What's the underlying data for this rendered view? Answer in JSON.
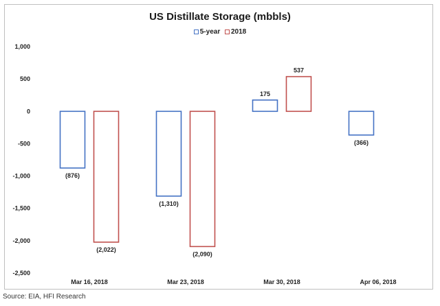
{
  "chart_data": {
    "type": "bar",
    "title": "US Distillate Storage (mbbls)",
    "categories": [
      "Mar 16, 2018",
      "Mar 23, 2018",
      "Mar 30, 2018",
      "Apr 06, 2018"
    ],
    "series": [
      {
        "name": "5-year",
        "values": [
          -876,
          -1310,
          175,
          -366
        ],
        "labels": [
          "(876)",
          "(1,310)",
          "175",
          "(366)"
        ],
        "color": "#4472c4"
      },
      {
        "name": "2018",
        "values": [
          -2022,
          -2090,
          537,
          null
        ],
        "labels": [
          "(2,022)",
          "(2,090)",
          "537",
          ""
        ],
        "color": "#c0504d"
      }
    ],
    "yticks": [
      1000,
      500,
      0,
      -500,
      -1000,
      -1500,
      -2000,
      -2500
    ],
    "ytick_labels": [
      "1,000",
      "500",
      "0",
      "-500",
      "-1,000",
      "-1,500",
      "-2,000",
      "-2,500"
    ],
    "ylim": [
      -2500,
      1000
    ],
    "grid": false,
    "legend_position": "top-center",
    "xlabel": "",
    "ylabel": ""
  },
  "source": "Source: EIA, HFI Research"
}
